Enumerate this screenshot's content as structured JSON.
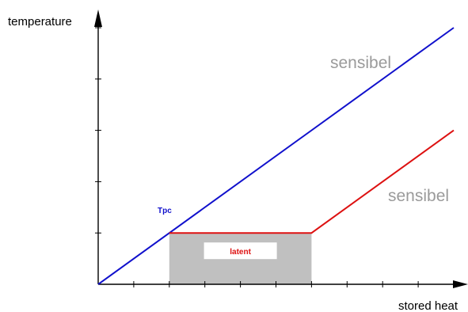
{
  "chart_data": {
    "type": "line",
    "ylabel": "temperature",
    "xlabel": "stored heat",
    "grid": false,
    "x_ticks": 10,
    "y_ticks": 5,
    "colors": {
      "sensible_only": "#1010cc",
      "with_pcm": "#dd1111",
      "latent_region": "#c0c0c0",
      "annotation": "#9a9a9a",
      "axis": "#000000"
    },
    "series": [
      {
        "points": [
          [
            0,
            0
          ],
          [
            10,
            5
          ]
        ]
      },
      {
        "points": [
          [
            2,
            1
          ],
          [
            6,
            1
          ],
          [
            10,
            3
          ]
        ]
      }
    ],
    "latent_region": {
      "x": [
        2,
        6
      ],
      "y": [
        0,
        1
      ],
      "label": "latent"
    },
    "annotations": [
      {
        "text": "Tpc",
        "color": "#1010cc"
      },
      {
        "text": "sensibel",
        "color": "#9a9a9a"
      },
      {
        "text": "sensibel",
        "color": "#9a9a9a"
      }
    ]
  }
}
